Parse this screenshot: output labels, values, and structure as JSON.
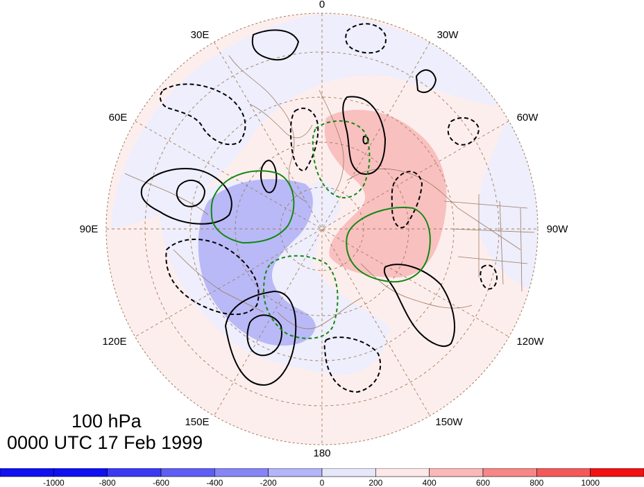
{
  "title": {
    "level": "100 hPa",
    "time": "0000 UTC 17 Feb 1999"
  },
  "map": {
    "projection": "north-polar-stereographic",
    "longitude_labels": [
      "0",
      "30W",
      "60W",
      "90W",
      "120W",
      "150W",
      "180",
      "150E",
      "120E",
      "90E",
      "60E",
      "30E"
    ]
  },
  "colorbar": {
    "tick_labels": [
      "-1000",
      "-800",
      "-600",
      "-400",
      "-200",
      "0",
      "200",
      "400",
      "600",
      "800",
      "1000"
    ],
    "colors": [
      "#1010f0",
      "#3a3af2",
      "#5e5ef4",
      "#8585f6",
      "#b4b4f9",
      "#e7e7fc",
      "#fde9e9",
      "#fab8b8",
      "#f78686",
      "#f45959",
      "#f21212"
    ]
  },
  "colors": {
    "positive_fill": "#fab8b8",
    "negative_fill": "#b4b4f9",
    "contour_black": "#000000",
    "contour_green": "#118811",
    "coastline": "#9b7a5e",
    "graticule": "#a07c58"
  }
}
